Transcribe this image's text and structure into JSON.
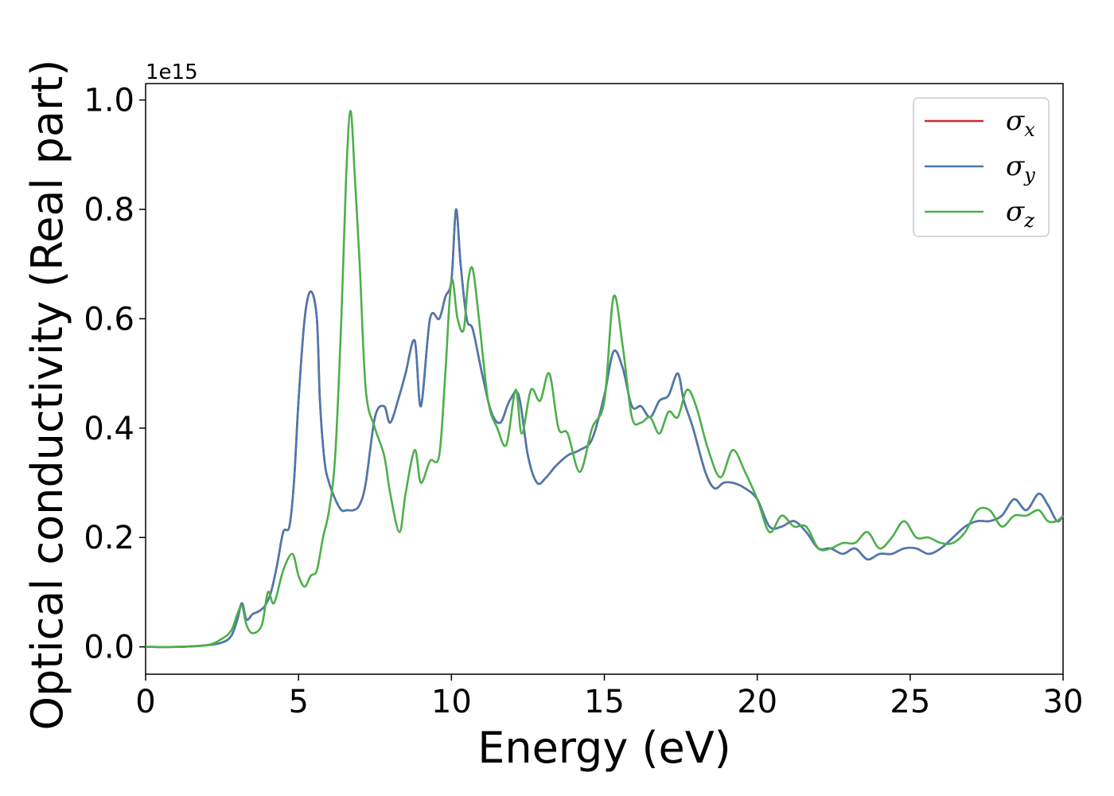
{
  "chart_data": {
    "type": "line",
    "title": "",
    "xlabel": "Energy (eV)",
    "ylabel": "Optical conductivity (Real part)",
    "y_offset_label": "1e15",
    "xlim": [
      0,
      30
    ],
    "ylim": [
      -0.05,
      1.03
    ],
    "xticks": [
      0,
      5,
      10,
      15,
      20,
      25,
      30
    ],
    "yticks": [
      0.0,
      0.2,
      0.4,
      0.6,
      0.8,
      1.0
    ],
    "xtick_labels": [
      "0",
      "5",
      "10",
      "15",
      "20",
      "25",
      "30"
    ],
    "ytick_labels": [
      "0.0",
      "0.2",
      "0.4",
      "0.6",
      "0.8",
      "1.0"
    ],
    "grid": false,
    "legend_position": "top-right",
    "series": [
      {
        "name": "σ",
        "subscript": "x",
        "color": "#d62728",
        "x": [
          0,
          1,
          2,
          2.5,
          2.8,
          3.0,
          3.15,
          3.3,
          3.5,
          3.7,
          3.9,
          4.1,
          4.3,
          4.5,
          4.7,
          4.85,
          5.0,
          5.2,
          5.4,
          5.6,
          5.7,
          5.85,
          6.0,
          6.2,
          6.4,
          6.6,
          6.8,
          7.0,
          7.2,
          7.5,
          7.8,
          8.0,
          8.3,
          8.5,
          8.8,
          9.0,
          9.3,
          9.6,
          9.8,
          10.0,
          10.15,
          10.3,
          10.5,
          10.7,
          11.0,
          11.3,
          11.6,
          11.9,
          12.2,
          12.5,
          12.8,
          13.1,
          13.4,
          13.8,
          14.2,
          14.6,
          15.0,
          15.3,
          15.6,
          15.9,
          16.2,
          16.5,
          16.8,
          17.1,
          17.4,
          17.6,
          17.9,
          18.3,
          18.6,
          18.9,
          19.2,
          19.6,
          20.0,
          20.4,
          20.8,
          21.2,
          21.6,
          22.0,
          22.4,
          22.8,
          23.2,
          23.6,
          24.0,
          24.4,
          24.8,
          25.2,
          25.6,
          26.0,
          26.4,
          26.8,
          27.2,
          27.6,
          28.0,
          28.4,
          28.8,
          29.2,
          29.5,
          29.8,
          30.0
        ],
        "values": [
          0.0,
          0.0,
          0.003,
          0.008,
          0.02,
          0.05,
          0.08,
          0.05,
          0.06,
          0.065,
          0.075,
          0.1,
          0.15,
          0.21,
          0.22,
          0.3,
          0.45,
          0.6,
          0.65,
          0.6,
          0.45,
          0.34,
          0.3,
          0.27,
          0.25,
          0.25,
          0.25,
          0.26,
          0.3,
          0.42,
          0.44,
          0.41,
          0.46,
          0.5,
          0.56,
          0.44,
          0.6,
          0.6,
          0.64,
          0.67,
          0.8,
          0.7,
          0.6,
          0.58,
          0.5,
          0.43,
          0.41,
          0.45,
          0.46,
          0.35,
          0.3,
          0.31,
          0.33,
          0.35,
          0.36,
          0.38,
          0.46,
          0.54,
          0.51,
          0.44,
          0.44,
          0.42,
          0.45,
          0.46,
          0.5,
          0.45,
          0.4,
          0.32,
          0.29,
          0.3,
          0.3,
          0.29,
          0.27,
          0.22,
          0.22,
          0.23,
          0.21,
          0.18,
          0.18,
          0.17,
          0.18,
          0.16,
          0.17,
          0.17,
          0.18,
          0.18,
          0.17,
          0.18,
          0.2,
          0.22,
          0.23,
          0.23,
          0.24,
          0.27,
          0.25,
          0.28,
          0.26,
          0.23,
          0.24
        ]
      },
      {
        "name": "σ",
        "subscript": "y",
        "color": "#4a7aad",
        "x": [
          0,
          1,
          2,
          2.5,
          2.8,
          3.0,
          3.15,
          3.3,
          3.5,
          3.7,
          3.9,
          4.1,
          4.3,
          4.5,
          4.7,
          4.85,
          5.0,
          5.2,
          5.4,
          5.6,
          5.7,
          5.85,
          6.0,
          6.2,
          6.4,
          6.6,
          6.8,
          7.0,
          7.2,
          7.5,
          7.8,
          8.0,
          8.3,
          8.5,
          8.8,
          9.0,
          9.3,
          9.6,
          9.8,
          10.0,
          10.15,
          10.3,
          10.5,
          10.7,
          11.0,
          11.3,
          11.6,
          11.9,
          12.2,
          12.5,
          12.8,
          13.1,
          13.4,
          13.8,
          14.2,
          14.6,
          15.0,
          15.3,
          15.6,
          15.9,
          16.2,
          16.5,
          16.8,
          17.1,
          17.4,
          17.6,
          17.9,
          18.3,
          18.6,
          18.9,
          19.2,
          19.6,
          20.0,
          20.4,
          20.8,
          21.2,
          21.6,
          22.0,
          22.4,
          22.8,
          23.2,
          23.6,
          24.0,
          24.4,
          24.8,
          25.2,
          25.6,
          26.0,
          26.4,
          26.8,
          27.2,
          27.6,
          28.0,
          28.4,
          28.8,
          29.2,
          29.5,
          29.8,
          30.0
        ],
        "values": [
          0.0,
          0.0,
          0.003,
          0.008,
          0.02,
          0.05,
          0.08,
          0.05,
          0.06,
          0.065,
          0.075,
          0.1,
          0.15,
          0.21,
          0.22,
          0.3,
          0.45,
          0.6,
          0.65,
          0.6,
          0.45,
          0.34,
          0.3,
          0.27,
          0.25,
          0.25,
          0.25,
          0.26,
          0.3,
          0.42,
          0.44,
          0.41,
          0.46,
          0.5,
          0.56,
          0.44,
          0.6,
          0.6,
          0.64,
          0.67,
          0.8,
          0.7,
          0.6,
          0.58,
          0.5,
          0.43,
          0.41,
          0.45,
          0.46,
          0.35,
          0.3,
          0.31,
          0.33,
          0.35,
          0.36,
          0.38,
          0.46,
          0.54,
          0.51,
          0.44,
          0.44,
          0.42,
          0.45,
          0.46,
          0.5,
          0.45,
          0.4,
          0.32,
          0.29,
          0.3,
          0.3,
          0.29,
          0.27,
          0.22,
          0.22,
          0.23,
          0.21,
          0.18,
          0.18,
          0.17,
          0.18,
          0.16,
          0.17,
          0.17,
          0.18,
          0.18,
          0.17,
          0.18,
          0.2,
          0.22,
          0.23,
          0.23,
          0.24,
          0.27,
          0.25,
          0.28,
          0.26,
          0.23,
          0.24
        ]
      },
      {
        "name": "σ",
        "subscript": "z",
        "color": "#4daf4a",
        "x": [
          0,
          1,
          2,
          2.5,
          2.8,
          3.0,
          3.15,
          3.3,
          3.5,
          3.8,
          4.0,
          4.2,
          4.5,
          4.8,
          5.0,
          5.2,
          5.4,
          5.6,
          5.8,
          6.0,
          6.2,
          6.4,
          6.55,
          6.7,
          6.85,
          7.0,
          7.2,
          7.5,
          7.8,
          8.0,
          8.3,
          8.5,
          8.8,
          9.0,
          9.3,
          9.6,
          9.8,
          10.0,
          10.2,
          10.4,
          10.55,
          10.7,
          10.9,
          11.2,
          11.5,
          11.8,
          12.1,
          12.3,
          12.6,
          12.9,
          13.2,
          13.5,
          13.8,
          14.2,
          14.6,
          15.0,
          15.3,
          15.6,
          15.9,
          16.2,
          16.5,
          16.8,
          17.1,
          17.4,
          17.7,
          18.0,
          18.4,
          18.8,
          19.2,
          19.6,
          20.0,
          20.4,
          20.8,
          21.2,
          21.6,
          22.0,
          22.4,
          22.8,
          23.2,
          23.6,
          24.0,
          24.4,
          24.8,
          25.2,
          25.6,
          26.0,
          26.4,
          26.8,
          27.2,
          27.6,
          28.0,
          28.4,
          28.8,
          29.2,
          29.5,
          29.8,
          30.0
        ],
        "values": [
          0.0,
          0.0,
          0.003,
          0.015,
          0.03,
          0.06,
          0.075,
          0.04,
          0.025,
          0.04,
          0.1,
          0.08,
          0.14,
          0.17,
          0.13,
          0.11,
          0.13,
          0.14,
          0.2,
          0.25,
          0.35,
          0.6,
          0.85,
          0.98,
          0.85,
          0.7,
          0.47,
          0.4,
          0.35,
          0.28,
          0.21,
          0.28,
          0.36,
          0.3,
          0.34,
          0.35,
          0.5,
          0.67,
          0.6,
          0.58,
          0.67,
          0.69,
          0.6,
          0.45,
          0.4,
          0.37,
          0.47,
          0.39,
          0.47,
          0.45,
          0.5,
          0.4,
          0.39,
          0.32,
          0.4,
          0.45,
          0.64,
          0.55,
          0.42,
          0.41,
          0.42,
          0.39,
          0.43,
          0.42,
          0.47,
          0.44,
          0.36,
          0.31,
          0.36,
          0.32,
          0.27,
          0.21,
          0.24,
          0.22,
          0.22,
          0.18,
          0.18,
          0.19,
          0.19,
          0.21,
          0.18,
          0.2,
          0.23,
          0.2,
          0.2,
          0.19,
          0.19,
          0.21,
          0.25,
          0.25,
          0.22,
          0.24,
          0.24,
          0.25,
          0.23,
          0.23,
          0.24
        ]
      }
    ]
  }
}
